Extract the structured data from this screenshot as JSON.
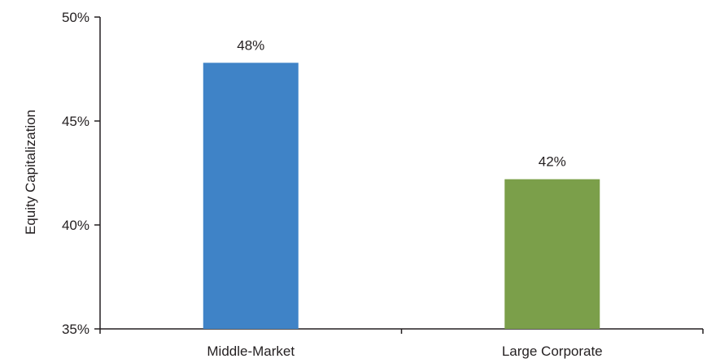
{
  "chart_data": {
    "type": "bar",
    "title": "",
    "xlabel": "",
    "ylabel": "Equity Capitalization",
    "categories": [
      "Middle-Market",
      "Large Corporate"
    ],
    "values": [
      47.8,
      42.2
    ],
    "data_labels": [
      "48%",
      "42%"
    ],
    "colors": [
      "#3f83c7",
      "#7b9f4a"
    ],
    "ylim": [
      35,
      50
    ],
    "yticks": [
      35,
      40,
      45,
      50
    ],
    "ytick_labels": [
      "35%",
      "40%",
      "45%",
      "50%"
    ],
    "grid": false,
    "legend": "none"
  }
}
